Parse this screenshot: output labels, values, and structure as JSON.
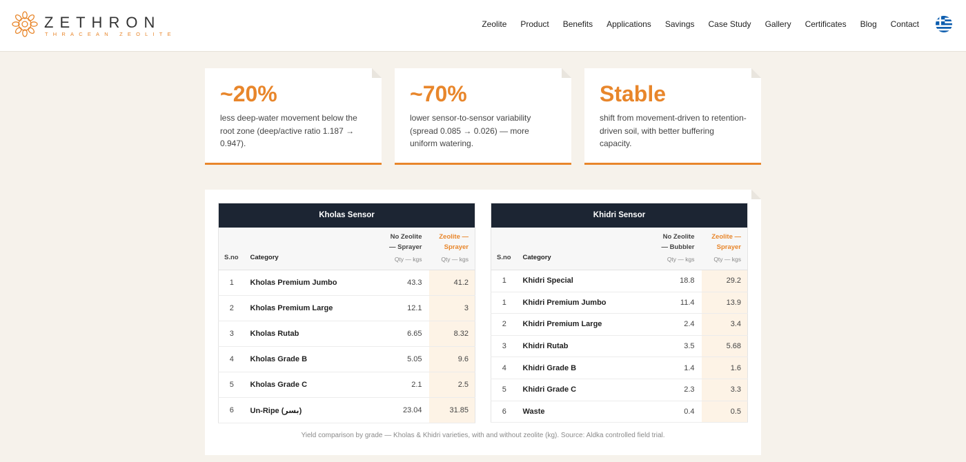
{
  "header": {
    "logo": {
      "name": "ZETHRON",
      "tagline": "THRACEAN ZEOLITE"
    },
    "nav": [
      "Zeolite",
      "Product",
      "Benefits",
      "Applications",
      "Savings",
      "Case Study",
      "Gallery",
      "Certificates",
      "Blog",
      "Contact"
    ]
  },
  "stats": [
    {
      "value": "~20%",
      "text": "less deep-water movement below the root zone (deep/active ratio 1.187 → 0.947)."
    },
    {
      "value": "~70%",
      "text": "lower sensor-to-sensor variability (spread 0.085 → 0.026) — more uniform watering."
    },
    {
      "value": "Stable",
      "text": "shift from movement-driven to retention-driven soil, with better buffering capacity."
    }
  ],
  "tables": [
    {
      "title": "Kholas Sensor",
      "columns": [
        {
          "label": "S.no"
        },
        {
          "label": "Category"
        },
        {
          "label": "No Zeolite — Sprayer",
          "unit": "Qty — kgs"
        },
        {
          "label": "Zeolite — Sprayer",
          "unit": "Qty — kgs"
        }
      ],
      "rows": [
        [
          "1",
          "Kholas Premium Jumbo",
          "43.3",
          "41.2"
        ],
        [
          "2",
          "Kholas Premium Large",
          "12.1",
          "3"
        ],
        [
          "3",
          "Kholas Rutab",
          "6.65",
          "8.32"
        ],
        [
          "4",
          "Kholas Grade B",
          "5.05",
          "9.6"
        ],
        [
          "5",
          "Kholas Grade C",
          "2.1",
          "2.5"
        ],
        [
          "6",
          "Un-Ripe (بسر)",
          "23.04",
          "31.85"
        ]
      ]
    },
    {
      "title": "Khidri Sensor",
      "columns": [
        {
          "label": "S.no"
        },
        {
          "label": "Category"
        },
        {
          "label": "No Zeolite — Bubbler",
          "unit": "Qty — kgs"
        },
        {
          "label": "Zeolite — Sprayer",
          "unit": "Qty — kgs"
        }
      ],
      "rows": [
        [
          "1",
          "Khidri Special",
          "18.8",
          "29.2"
        ],
        [
          "1",
          "Khidri Premium Jumbo",
          "11.4",
          "13.9"
        ],
        [
          "2",
          "Khidri Premium Large",
          "2.4",
          "3.4"
        ],
        [
          "3",
          "Khidri Rutab",
          "3.5",
          "5.68"
        ],
        [
          "4",
          "Khidri Grade B",
          "1.4",
          "1.6"
        ],
        [
          "5",
          "Khidri Grade C",
          "2.3",
          "3.3"
        ],
        [
          "6",
          "Waste",
          "0.4",
          "0.5"
        ]
      ]
    }
  ],
  "caption": "Yield comparison by grade — Kholas & Khidri varieties, with and without zeolite (kg). Source: Aldka controlled field trial."
}
